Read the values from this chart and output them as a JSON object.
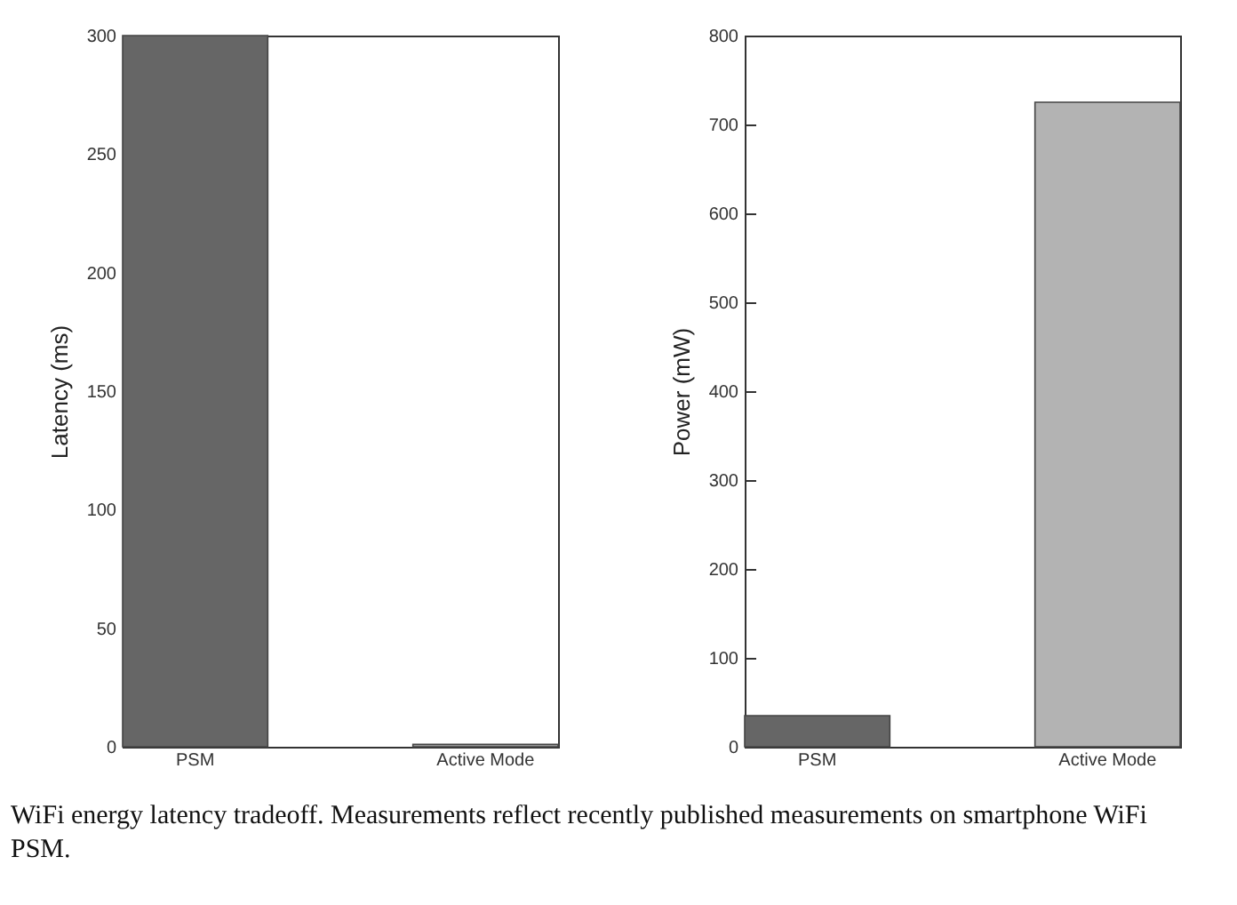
{
  "chart_data": [
    {
      "type": "bar",
      "categories": [
        "PSM",
        "Active Mode"
      ],
      "values": [
        300,
        1
      ],
      "colors": [
        "#666666",
        "#b3b3b3"
      ],
      "ylabel": "Latency (ms)",
      "ylim": [
        0,
        300
      ],
      "yticks": [
        0,
        50,
        100,
        150,
        200,
        250,
        300
      ],
      "grid": false,
      "annotations": [
        "WiFi energy latency tradeoff. Measurements reflect recently published measurements on smartphone WiFi PSM."
      ]
    },
    {
      "type": "bar",
      "categories": [
        "PSM",
        "Active Mode"
      ],
      "values": [
        35,
        725
      ],
      "colors": [
        "#666666",
        "#b3b3b3"
      ],
      "ylabel": "Power (mW)",
      "ylim": [
        0,
        800
      ],
      "yticks": [
        0,
        100,
        200,
        300,
        400,
        500,
        600,
        700,
        800
      ],
      "grid": false
    }
  ]
}
